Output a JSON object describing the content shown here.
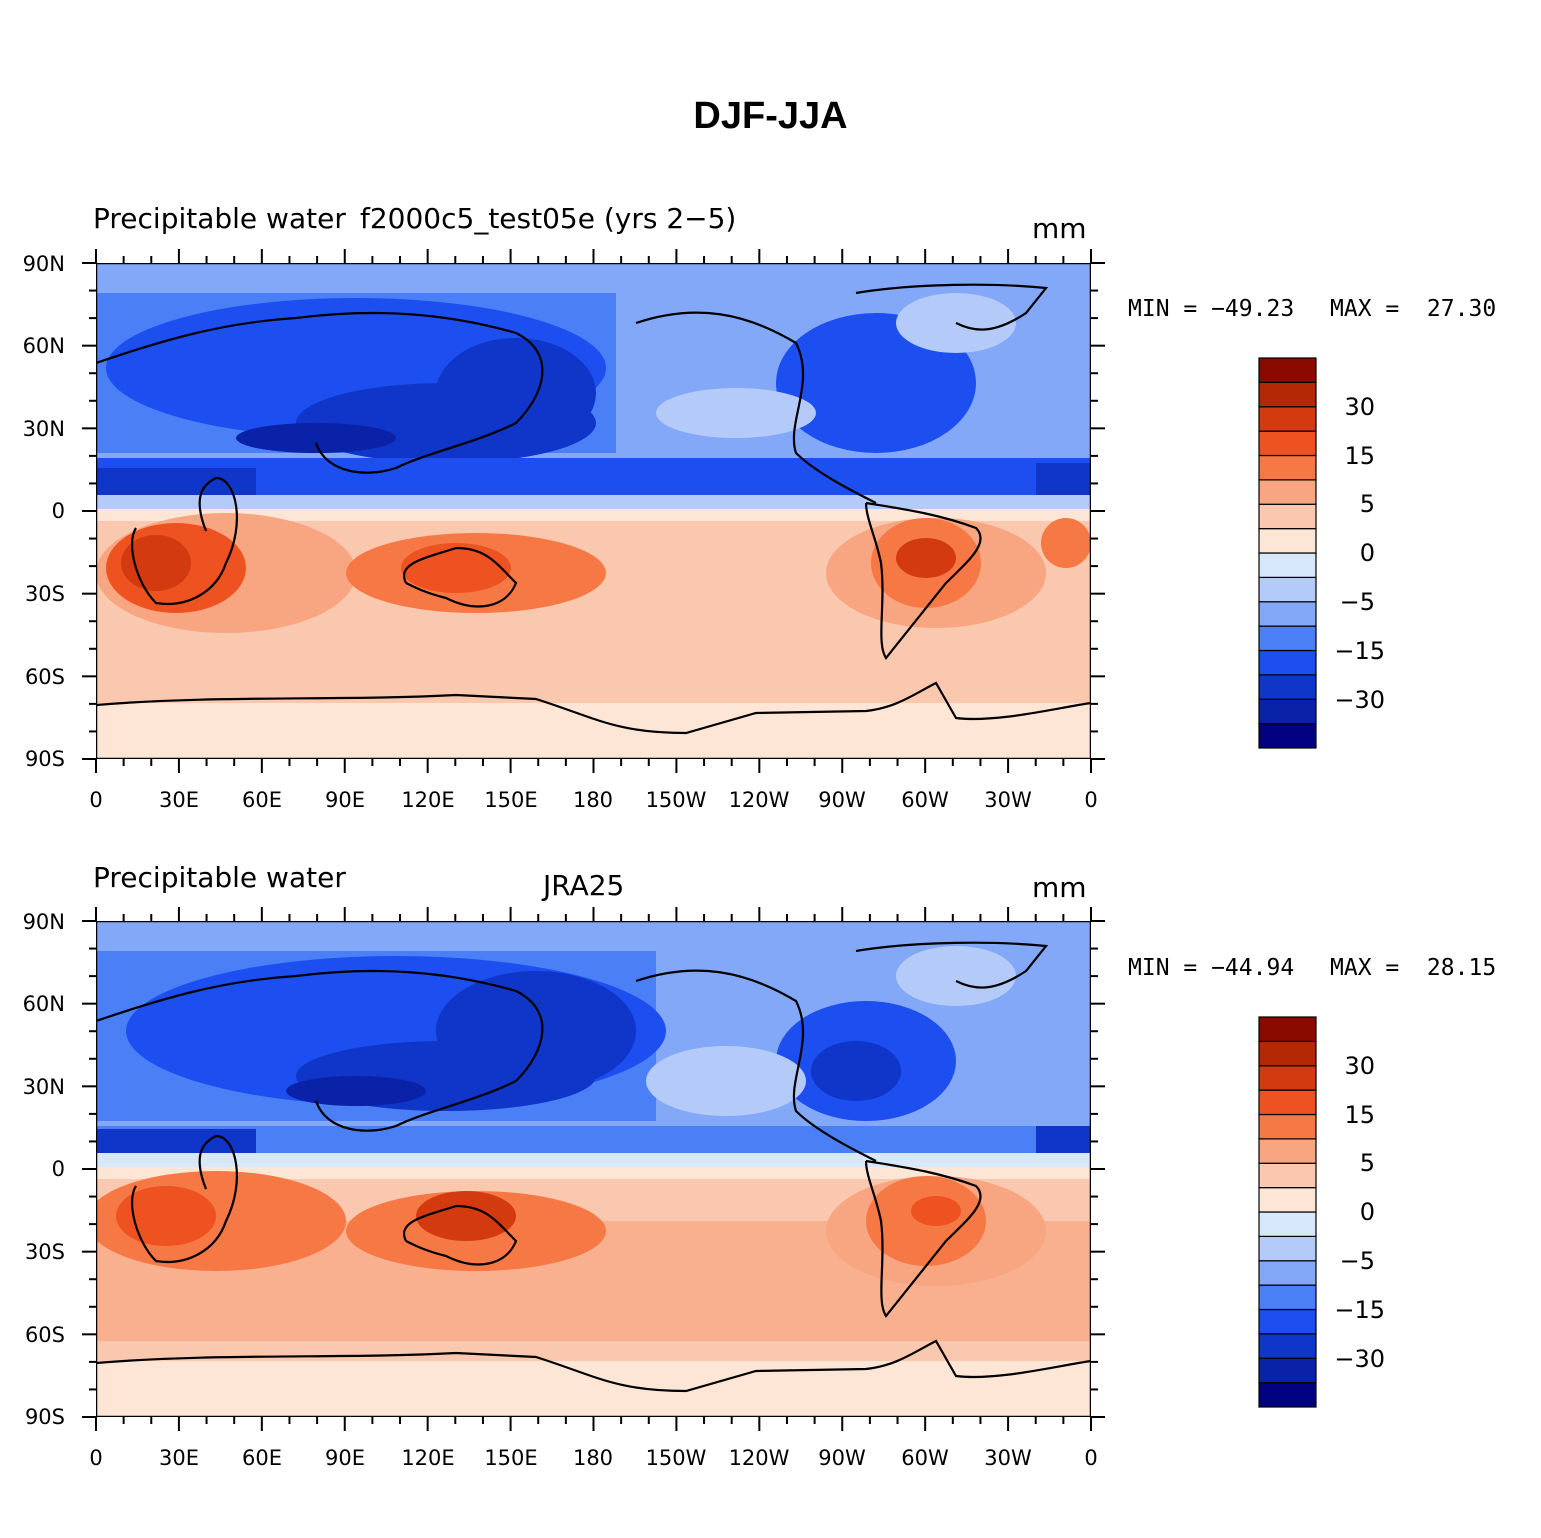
{
  "title": "DJF-JJA",
  "lat_ticks": [
    "90N",
    "60N",
    "30N",
    "0",
    "30S",
    "60S",
    "90S"
  ],
  "lon_ticks": [
    "0",
    "30E",
    "60E",
    "90E",
    "120E",
    "150E",
    "180",
    "150W",
    "120W",
    "90W",
    "60W",
    "30W",
    "0"
  ],
  "colorbar": {
    "colors": [
      "#000080",
      "#0a22a8",
      "#0f36c8",
      "#1c4ef0",
      "#4a7ff5",
      "#82a8f7",
      "#b4cbf9",
      "#d8e8fb",
      "#fde6d6",
      "#f9c8ae",
      "#f8a582",
      "#f57845",
      "#ee5220",
      "#d43a10",
      "#b42806",
      "#8b0a00"
    ],
    "labels": [
      "30",
      "15",
      "5",
      "0",
      "−5",
      "−15",
      "−30"
    ]
  },
  "panels": [
    {
      "left_title": "Precipitable water",
      "center_title": "f2000c5_test05e (yrs 2−5)",
      "units": "mm",
      "min_label": "MIN = −49.23",
      "max_label": "MAX =  27.30"
    },
    {
      "left_title": "Precipitable water",
      "center_title": "JRA25",
      "units": "mm",
      "min_label": "MIN = −44.94",
      "max_label": "MAX =  28.15"
    }
  ]
}
